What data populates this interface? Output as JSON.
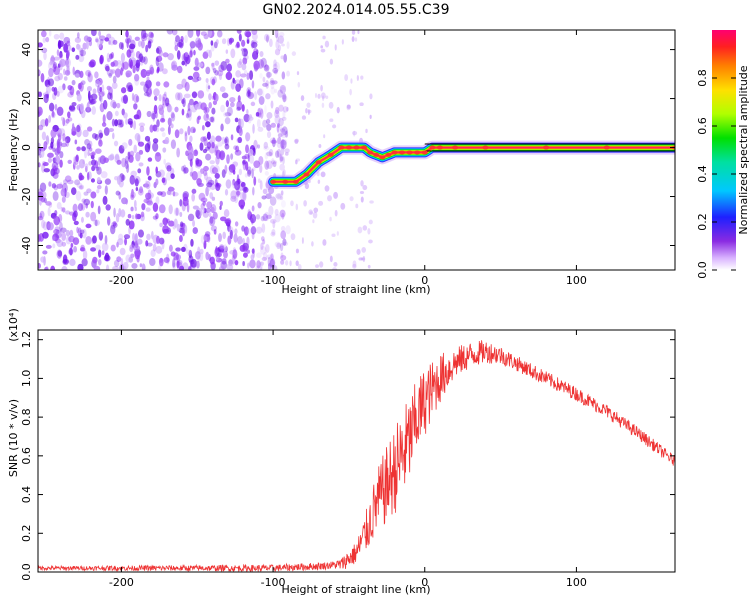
{
  "title": "GN02.2024.014.05.55.C39",
  "colors": {
    "snr_line": "#ee3333",
    "spectrogram_noise": "#7a1ff0",
    "frame": "#000000"
  },
  "chart_data": [
    {
      "type": "heatmap",
      "panel": "spectrogram",
      "xlabel": "Height of straight line (km)",
      "ylabel": "Frequency (Hz)",
      "xlim": [
        -255,
        165
      ],
      "ylim": [
        -50,
        48
      ],
      "xticks": [
        -200,
        -100,
        0,
        100
      ],
      "xtick_labels": [
        "-200",
        "-100",
        "0",
        "100"
      ],
      "yticks": [
        -40,
        -20,
        0,
        20,
        40
      ],
      "ytick_labels": [
        "-40",
        "-20",
        "0",
        "20",
        "40"
      ],
      "colorbar": {
        "label": "Normalized spectral amplitude",
        "range": [
          0.0,
          1.0
        ],
        "ticks": [
          0.0,
          0.2,
          0.4,
          0.6,
          0.8
        ],
        "tick_labels": [
          "0.0",
          "0.2",
          "0.4",
          "0.6",
          "0.8"
        ]
      },
      "noise_region_x": [
        -255,
        -90
      ],
      "signal_track": {
        "x": [
          -100,
          -92,
          -85,
          -78,
          -70,
          -62,
          -55,
          -50,
          -45,
          -40,
          -36,
          -32,
          -28,
          -24,
          -20,
          -15,
          -10,
          -5,
          0,
          5,
          10,
          20,
          40,
          80,
          120,
          165
        ],
        "y": [
          -14,
          -14,
          -14,
          -11,
          -6,
          -3,
          0,
          0,
          0,
          0,
          -2,
          -3,
          -4,
          -3,
          -2,
          -2,
          -2,
          -2,
          -2,
          0,
          0,
          0,
          0,
          0,
          0,
          0
        ]
      }
    },
    {
      "type": "line",
      "panel": "snr",
      "xlabel": "Height of straight line (km)",
      "ylabel": "SNR (10 * v/v)",
      "y_scale_label": "(x10⁴)",
      "xlim": [
        -255,
        165
      ],
      "ylim": [
        0,
        1.25
      ],
      "xticks": [
        -200,
        -100,
        0,
        100
      ],
      "xtick_labels": [
        "-200",
        "-100",
        "0",
        "100"
      ],
      "yticks": [
        0.0,
        0.2,
        0.4,
        0.6,
        0.8,
        1.0,
        1.2
      ],
      "ytick_labels": [
        "0.0",
        "0.2",
        "0.4",
        "0.6",
        "0.8",
        "1.0",
        "1.2"
      ],
      "series": [
        {
          "envelope_x": [
            -255,
            -200,
            -150,
            -100,
            -70,
            -55,
            -45,
            -38,
            -32,
            -25,
            -18,
            -10,
            -5,
            0,
            10,
            20,
            30,
            40,
            50,
            60,
            80,
            100,
            120,
            140,
            165
          ],
          "envelope_y": [
            0.02,
            0.02,
            0.02,
            0.02,
            0.03,
            0.04,
            0.1,
            0.22,
            0.35,
            0.45,
            0.55,
            0.68,
            0.8,
            0.88,
            1.0,
            1.08,
            1.12,
            1.14,
            1.12,
            1.08,
            1.0,
            0.92,
            0.83,
            0.72,
            0.57
          ],
          "noise_amp_x": [
            -255,
            -60,
            -45,
            -30,
            -15,
            0,
            20,
            60,
            165
          ],
          "noise_amp_y": [
            0.01,
            0.02,
            0.06,
            0.18,
            0.25,
            0.18,
            0.08,
            0.04,
            0.03
          ]
        }
      ]
    }
  ]
}
